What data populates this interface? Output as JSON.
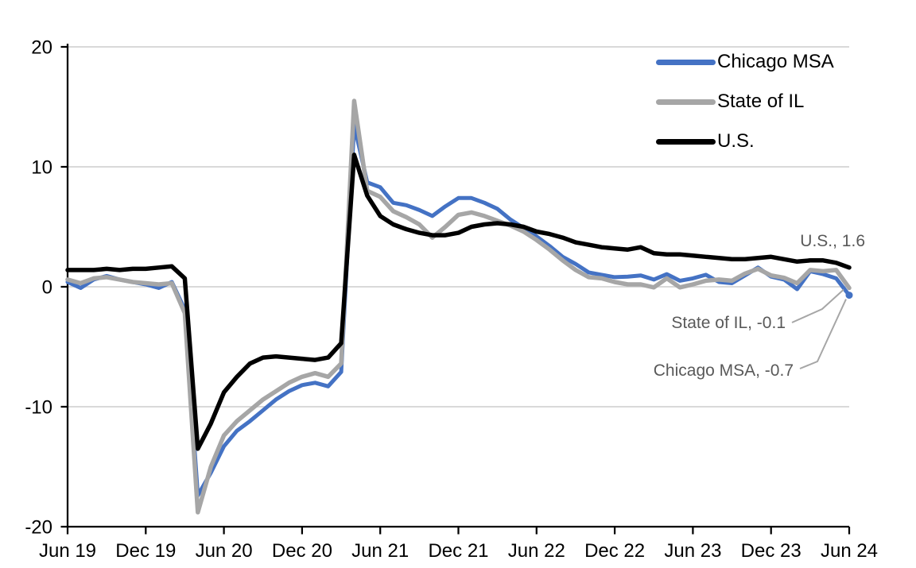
{
  "chart_data": {
    "type": "line",
    "title": "",
    "subtitle": "",
    "unit": "percent (year-over-year)",
    "frequency": "monthly",
    "x_start": "Jun 2019",
    "x_end": "Jun 2024",
    "x_tick_labels": [
      "Jun 19",
      "Dec 19",
      "Jun 20",
      "Dec 20",
      "Jun 21",
      "Dec 21",
      "Jun 22",
      "Dec 22",
      "Jun 23",
      "Dec 23",
      "Jun 24"
    ],
    "y_ticks": [
      -20,
      -10,
      0,
      10,
      20
    ],
    "y_tick_labels": [
      "-20",
      "-10",
      "0",
      "10",
      "20"
    ],
    "ylim": [
      -20,
      20
    ],
    "grid": "horizontal",
    "gridline_values": [
      -10,
      0,
      10,
      20
    ],
    "legend_position": "top-right-inside",
    "series": [
      {
        "name": "Chicago MSA",
        "color": "#4472C4",
        "end_value": -0.7,
        "end_label": "Chicago MSA, -0.7",
        "values": [
          0.4,
          -0.1,
          0.6,
          0.9,
          0.6,
          0.4,
          0.2,
          -0.1,
          0.4,
          -1.9,
          -17.4,
          -15.5,
          -13.3,
          -12.0,
          -11.2,
          -10.3,
          -9.4,
          -8.7,
          -8.2,
          -8.0,
          -8.3,
          -7.1,
          13.5,
          8.7,
          8.3,
          7.0,
          6.8,
          6.4,
          5.9,
          6.7,
          7.4,
          7.4,
          7.0,
          6.5,
          5.6,
          4.9,
          4.2,
          3.4,
          2.5,
          1.9,
          1.2,
          1.0,
          0.8,
          0.85,
          0.95,
          0.6,
          1.05,
          0.5,
          0.7,
          1.0,
          0.4,
          0.3,
          0.95,
          1.6,
          0.85,
          0.6,
          -0.2,
          1.3,
          1.05,
          0.7,
          -0.7
        ]
      },
      {
        "name": "State of IL",
        "color": "#A6A6A6",
        "end_value": -0.1,
        "end_label": "State of IL, -0.1",
        "values": [
          0.6,
          0.3,
          0.7,
          0.8,
          0.6,
          0.4,
          0.3,
          0.2,
          0.3,
          -2.2,
          -18.8,
          -15.0,
          -12.4,
          -11.2,
          -10.3,
          -9.4,
          -8.7,
          -8.0,
          -7.5,
          -7.2,
          -7.5,
          -6.4,
          15.5,
          8.0,
          7.5,
          6.3,
          5.8,
          5.2,
          4.1,
          5.0,
          6.0,
          6.2,
          5.9,
          5.5,
          5.1,
          4.6,
          3.9,
          3.1,
          2.2,
          1.4,
          0.8,
          0.7,
          0.4,
          0.2,
          0.2,
          -0.05,
          0.7,
          -0.05,
          0.2,
          0.5,
          0.6,
          0.5,
          1.1,
          1.5,
          0.95,
          0.75,
          0.3,
          1.4,
          1.3,
          1.4,
          -0.1
        ]
      },
      {
        "name": "U.S.",
        "color": "#000000",
        "end_value": 1.6,
        "end_label": "U.S., 1.6",
        "values": [
          1.4,
          1.4,
          1.4,
          1.5,
          1.4,
          1.5,
          1.5,
          1.6,
          1.7,
          0.7,
          -13.5,
          -11.4,
          -8.8,
          -7.5,
          -6.4,
          -5.9,
          -5.8,
          -5.9,
          -6.0,
          -6.1,
          -5.9,
          -4.7,
          11.0,
          7.6,
          5.9,
          5.2,
          4.8,
          4.5,
          4.3,
          4.3,
          4.5,
          5.0,
          5.2,
          5.3,
          5.2,
          5.0,
          4.6,
          4.4,
          4.1,
          3.7,
          3.5,
          3.3,
          3.2,
          3.1,
          3.3,
          2.8,
          2.7,
          2.7,
          2.6,
          2.5,
          2.4,
          2.3,
          2.3,
          2.4,
          2.5,
          2.3,
          2.1,
          2.2,
          2.2,
          2.0,
          1.6
        ]
      }
    ]
  },
  "legend": {
    "items": [
      {
        "label": "Chicago MSA",
        "color": "#4472C4"
      },
      {
        "label": "State of IL",
        "color": "#A6A6A6"
      },
      {
        "label": "U.S.",
        "color": "#000000"
      }
    ]
  },
  "annotations": {
    "us": {
      "text": "U.S., 1.6"
    },
    "il": {
      "text": "State of IL, -0.1"
    },
    "chicago": {
      "text": "Chicago MSA, -0.7"
    }
  },
  "colors": {
    "background": "#FFFFFF",
    "gridline": "#D9D9D9",
    "axis": "#000000",
    "tick_label": "#000000",
    "annotation_text": "#595959",
    "leader_line": "#A6A6A6",
    "chicago_line": "#4472C4",
    "il_line": "#A6A6A6",
    "us_line": "#000000"
  }
}
